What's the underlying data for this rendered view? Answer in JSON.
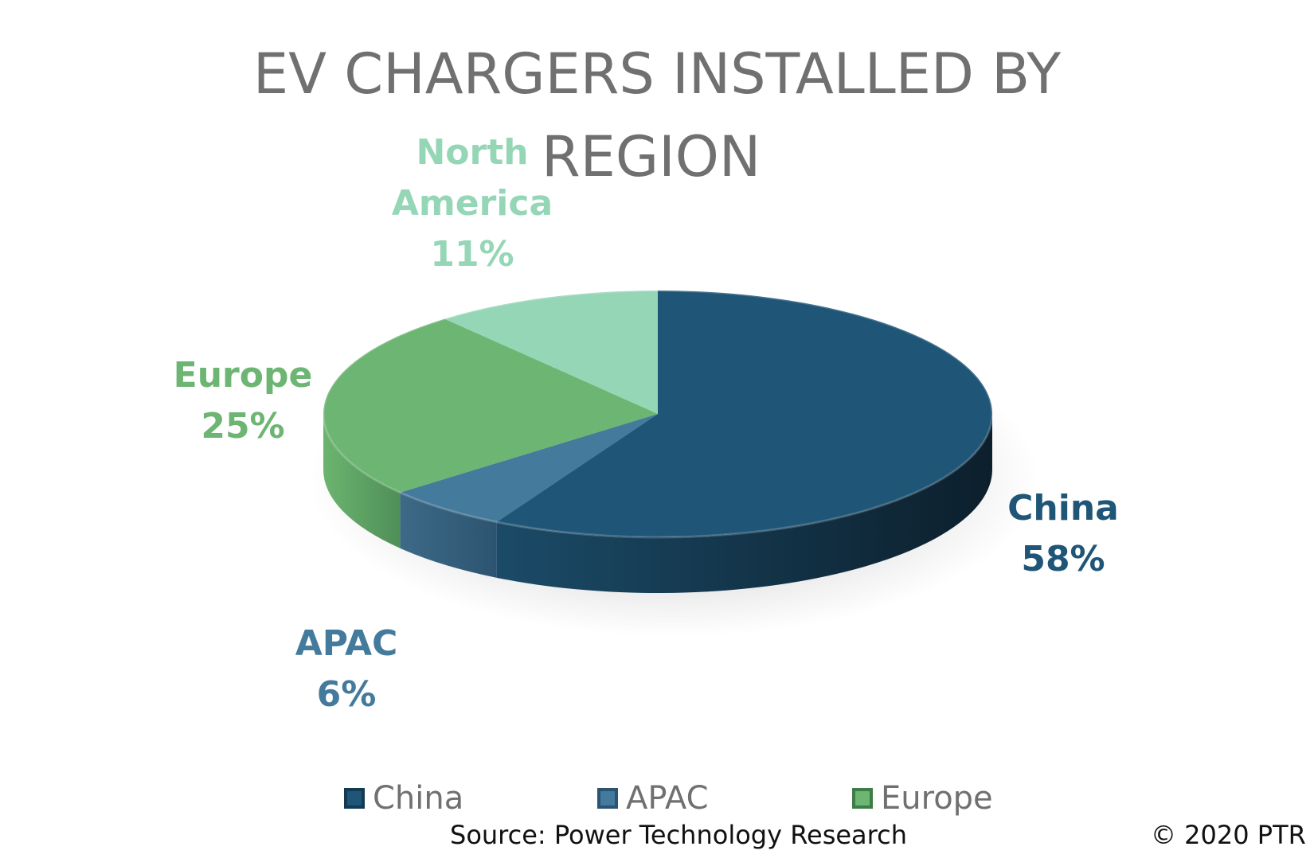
{
  "chart_data": {
    "type": "pie",
    "title": "EV CHARGERS INSTALLED BY REGION",
    "title_lines": [
      "EV CHARGERS INSTALLED BY",
      "REGION"
    ],
    "slices": [
      {
        "name": "China",
        "value": 58,
        "label": "58%",
        "color": "#1f5677"
      },
      {
        "name": "APAC",
        "value": 6,
        "label": "6%",
        "color": "#447a9b"
      },
      {
        "name": "Europe",
        "value": 25,
        "label": "25%",
        "color": "#6db572"
      },
      {
        "name": "North America",
        "value": 11,
        "label": "11%",
        "color": "#95d6b7"
      }
    ],
    "legend": [
      "China",
      "APAC",
      "Europe"
    ],
    "legend_position": "bottom"
  },
  "labels": {
    "china_name": "China",
    "china_pct": "58%",
    "apac_name": "APAC",
    "apac_pct": "6%",
    "europe_name": "Europe",
    "europe_pct": "25%",
    "na_name_1": "North",
    "na_name_2": "America",
    "na_pct": "11%"
  },
  "legend": {
    "china": "China",
    "apac": "APAC",
    "europe": "Europe"
  },
  "footer": {
    "source": "Source: Power Technology Research",
    "copyright": "© 2020 PTR"
  }
}
